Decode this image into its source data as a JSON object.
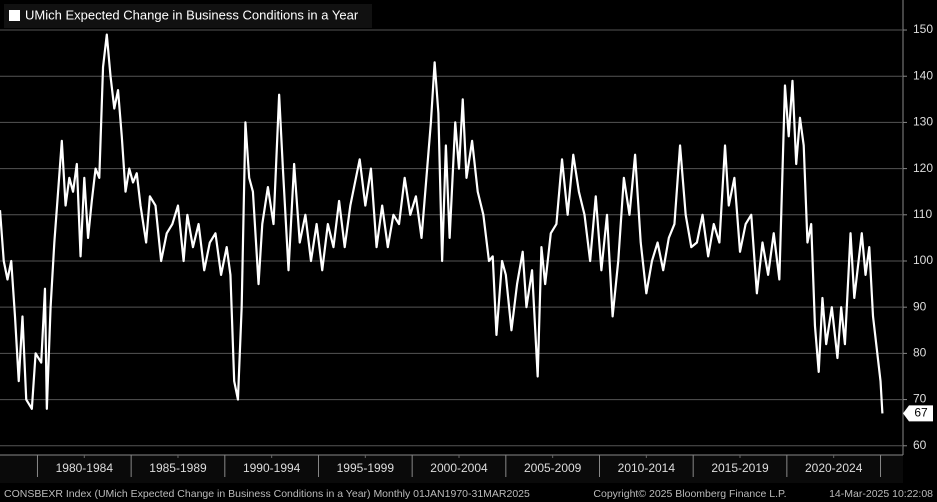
{
  "chart_data": {
    "type": "line",
    "series": [
      {
        "name": "UMich Expected Change in Business Conditions in a Year",
        "color": "#ffffff",
        "values": [
          111,
          100,
          96,
          100,
          88,
          74,
          88,
          70,
          68,
          80,
          78,
          94,
          68,
          90,
          104,
          115,
          126,
          112,
          118,
          115,
          121,
          101,
          118,
          105,
          113,
          120,
          118,
          142,
          149,
          140,
          133,
          137,
          127,
          115,
          120,
          117,
          119,
          112,
          104,
          114,
          112,
          100,
          106,
          108,
          112,
          100,
          110,
          103,
          108,
          98,
          104,
          106,
          97,
          103,
          97,
          74,
          70,
          90,
          130,
          118,
          115,
          95,
          108,
          116,
          108,
          136,
          120,
          98,
          121,
          104,
          110,
          100,
          108,
          98,
          108,
          103,
          113,
          103,
          112,
          118,
          122,
          112,
          120,
          103,
          112,
          103,
          110,
          108,
          118,
          110,
          114,
          105,
          120,
          130,
          143,
          132,
          100,
          125,
          105,
          130,
          120,
          135,
          118,
          126,
          115,
          110,
          100,
          101,
          84,
          100,
          97,
          85,
          95,
          102,
          90,
          98,
          75,
          103,
          95,
          106,
          108,
          122,
          110,
          123,
          115,
          110,
          100,
          114,
          98,
          110,
          88,
          100,
          118,
          110,
          123,
          104,
          93,
          100,
          104,
          98,
          105,
          108,
          125,
          110,
          103,
          104,
          110,
          101,
          108,
          104,
          125,
          112,
          118,
          102,
          108,
          110,
          93,
          104,
          97,
          106,
          96,
          138,
          127,
          139,
          121,
          131,
          125,
          104,
          108,
          86,
          76,
          92,
          82,
          90,
          79,
          90,
          82,
          106,
          92,
          99,
          106,
          97,
          103,
          88,
          74,
          67
        ]
      }
    ],
    "x": [
      1978.0,
      1978.2,
      1978.4,
      1978.6,
      1978.8,
      1979.0,
      1979.2,
      1979.4,
      1979.7,
      1979.9,
      1980.2,
      1980.4,
      1980.5,
      1980.7,
      1980.9,
      1981.1,
      1981.3,
      1981.5,
      1981.7,
      1981.9,
      1982.1,
      1982.3,
      1982.5,
      1982.7,
      1982.9,
      1983.1,
      1983.3,
      1983.5,
      1983.7,
      1983.9,
      1984.1,
      1984.3,
      1984.5,
      1984.7,
      1984.9,
      1985.1,
      1985.3,
      1985.5,
      1985.8,
      1986.0,
      1986.3,
      1986.6,
      1986.9,
      1987.2,
      1987.5,
      1987.8,
      1988.0,
      1988.3,
      1988.6,
      1988.9,
      1989.2,
      1989.5,
      1989.8,
      1990.1,
      1990.3,
      1990.5,
      1990.7,
      1990.9,
      1991.1,
      1991.3,
      1991.5,
      1991.8,
      1992.0,
      1992.3,
      1992.6,
      1992.9,
      1993.1,
      1993.4,
      1993.7,
      1994.0,
      1994.3,
      1994.6,
      1994.9,
      1995.2,
      1995.5,
      1995.8,
      1996.1,
      1996.4,
      1996.7,
      1997.0,
      1997.2,
      1997.5,
      1997.8,
      1998.1,
      1998.4,
      1998.7,
      1999.0,
      1999.3,
      1999.6,
      1999.9,
      2000.2,
      2000.5,
      2000.8,
      2001.0,
      2001.2,
      2001.4,
      2001.6,
      2001.8,
      2002.0,
      2002.3,
      2002.5,
      2002.7,
      2002.9,
      2003.2,
      2003.5,
      2003.8,
      2004.1,
      2004.3,
      2004.5,
      2004.8,
      2005.0,
      2005.3,
      2005.6,
      2005.9,
      2006.1,
      2006.4,
      2006.7,
      2006.9,
      2007.1,
      2007.4,
      2007.7,
      2008.0,
      2008.3,
      2008.6,
      2008.9,
      2009.2,
      2009.5,
      2009.8,
      2010.1,
      2010.4,
      2010.7,
      2011.0,
      2011.3,
      2011.6,
      2011.9,
      2012.2,
      2012.5,
      2012.8,
      2013.1,
      2013.4,
      2013.7,
      2014.0,
      2014.3,
      2014.6,
      2014.9,
      2015.2,
      2015.5,
      2015.8,
      2016.1,
      2016.4,
      2016.7,
      2016.9,
      2017.2,
      2017.5,
      2017.8,
      2018.1,
      2018.4,
      2018.7,
      2019.0,
      2019.3,
      2019.6,
      2019.9,
      2020.1,
      2020.3,
      2020.5,
      2020.7,
      2020.9,
      2021.1,
      2021.3,
      2021.5,
      2021.7,
      2021.9,
      2022.1,
      2022.4,
      2022.7,
      2022.9,
      2023.1,
      2023.4,
      2023.6,
      2023.8,
      2024.0,
      2024.2,
      2024.4,
      2024.6,
      2025.0,
      2025.1
    ],
    "xlim": [
      1978,
      2026.2
    ],
    "xticks": [
      {
        "value": 1982.5,
        "label": "1980-1984"
      },
      {
        "value": 1987.5,
        "label": "1985-1989"
      },
      {
        "value": 1992.5,
        "label": "1990-1994"
      },
      {
        "value": 1997.5,
        "label": "1995-1999"
      },
      {
        "value": 2002.5,
        "label": "2000-2004"
      },
      {
        "value": 2007.5,
        "label": "2005-2009"
      },
      {
        "value": 2012.5,
        "label": "2010-2014"
      },
      {
        "value": 2017.5,
        "label": "2015-2019"
      },
      {
        "value": 2022.5,
        "label": "2020-2024"
      }
    ],
    "ylim": [
      58,
      156.5
    ],
    "yticks": [
      60,
      70,
      80,
      90,
      100,
      110,
      120,
      130,
      140,
      150
    ],
    "grid": true,
    "footer": {
      "left": "CONSBEXR Index (UMich Expected Change in Business Conditions in a Year)  Monthly 01JAN1970-31MAR2025",
      "center": "Copyright© 2025 Bloomberg Finance L.P.",
      "right": "14-Mar-2025 10:22:08"
    }
  }
}
